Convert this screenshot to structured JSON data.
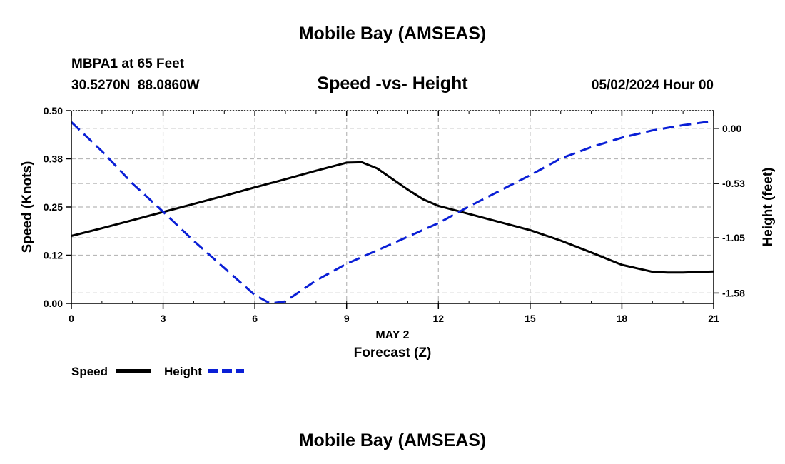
{
  "header": {
    "title": "Mobile Bay (AMSEAS)",
    "station": "MBPA1 at 65 Feet",
    "coords": "30.5270N  88.0860W",
    "chart_title": "Speed -vs- Height",
    "timestamp": "05/02/2024 Hour 00"
  },
  "footer": {
    "title": "Mobile Bay (AMSEAS)"
  },
  "colors": {
    "speed": "#000000",
    "height": "#0a1fd6",
    "grid": "#b8b8b8"
  },
  "chart_data": {
    "type": "line",
    "title": "Speed -vs- Height",
    "xlabel_date": "MAY 2",
    "xlabel": "Forecast (Z)",
    "ylabel": "Speed (Knots)",
    "y2label": "Height (feet)",
    "xlim": [
      0,
      21
    ],
    "ylim": [
      0,
      0.5
    ],
    "y2lim": [
      -1.68,
      0.17
    ],
    "xticks": [
      "0",
      "3",
      "6",
      "9",
      "12",
      "15",
      "18",
      "21"
    ],
    "xtick_values": [
      0,
      3,
      6,
      9,
      12,
      15,
      18,
      21
    ],
    "yticks": [
      "0.00",
      "0.12",
      "0.25",
      "0.38",
      "0.50"
    ],
    "ytick_values": [
      0,
      0.125,
      0.25,
      0.375,
      0.5
    ],
    "y2ticks": [
      "0.00",
      "-0.53",
      "-1.05",
      "-1.58"
    ],
    "y2tick_values": [
      0,
      -0.53,
      -1.05,
      -1.58
    ],
    "grid": true,
    "legend_position": "bottom-left",
    "series": [
      {
        "name": "Speed",
        "axis": "left",
        "style": "solid",
        "x": [
          0,
          1,
          2,
          3,
          4,
          5,
          6,
          7,
          8,
          9,
          9.5,
          10,
          11,
          11.5,
          12,
          13,
          14,
          15,
          16,
          17,
          18,
          19,
          19.5,
          20,
          21
        ],
        "y": [
          0.175,
          0.195,
          0.216,
          0.237,
          0.258,
          0.279,
          0.301,
          0.322,
          0.344,
          0.365,
          0.366,
          0.35,
          0.295,
          0.27,
          0.253,
          0.232,
          0.211,
          0.19,
          0.163,
          0.132,
          0.1,
          0.082,
          0.08,
          0.08,
          0.083
        ]
      },
      {
        "name": "Height",
        "axis": "right",
        "style": "dashed",
        "x": [
          0,
          1,
          2,
          3,
          4,
          5,
          6,
          6.5,
          7,
          8,
          9,
          10,
          11,
          12,
          13,
          14,
          15,
          16,
          17,
          18,
          19,
          20,
          21
        ],
        "y": [
          0.06,
          -0.22,
          -0.53,
          -0.8,
          -1.08,
          -1.34,
          -1.6,
          -1.68,
          -1.66,
          -1.46,
          -1.3,
          -1.17,
          -1.04,
          -0.91,
          -0.75,
          -0.6,
          -0.45,
          -0.29,
          -0.18,
          -0.09,
          -0.02,
          0.03,
          0.07
        ]
      }
    ]
  }
}
